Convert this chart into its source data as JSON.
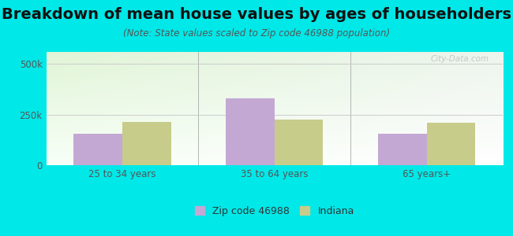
{
  "title": "Breakdown of mean house values by ages of householders",
  "subtitle": "(Note: State values scaled to Zip code 46988 population)",
  "categories": [
    "25 to 34 years",
    "35 to 64 years",
    "65 years+"
  ],
  "zip_values": [
    155000,
    330000,
    155000
  ],
  "state_values": [
    215000,
    225000,
    210000
  ],
  "zip_color": "#c4a8d4",
  "state_color": "#c8cc8a",
  "background_color": "#00e8e8",
  "ylim": [
    0,
    560000
  ],
  "yticks": [
    0,
    250000,
    500000
  ],
  "ytick_labels": [
    "0",
    "250k",
    "500k"
  ],
  "legend_zip_label": "Zip code 46988",
  "legend_state_label": "Indiana",
  "bar_width": 0.32,
  "watermark": "City-Data.com",
  "title_fontsize": 14,
  "subtitle_fontsize": 8.5,
  "tick_fontsize": 8.5,
  "legend_fontsize": 9
}
